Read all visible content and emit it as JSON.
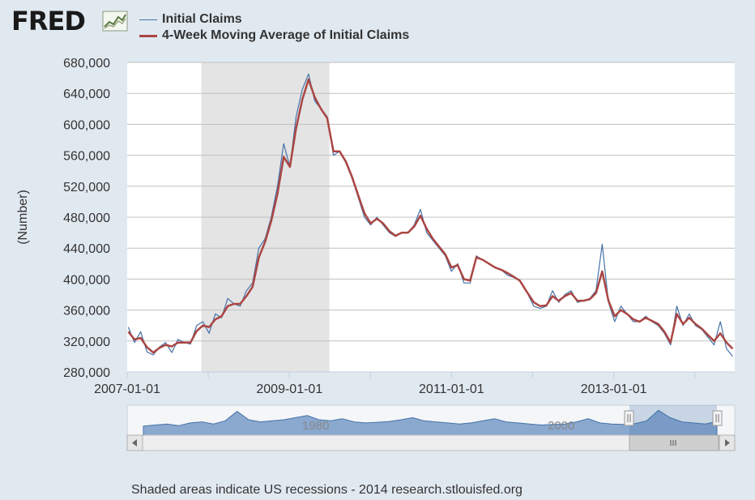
{
  "logo": {
    "text": "FRED"
  },
  "legend": {
    "items": [
      {
        "label": "Initial Claims",
        "color": "#4572a7"
      },
      {
        "label": "4-Week Moving Average of Initial Claims",
        "color": "#aa4643"
      }
    ]
  },
  "footer": {
    "text": "Shaded areas indicate US recessions - 2014 research.stlouisfed.org"
  },
  "navigator": {
    "labels": [
      "1980",
      "2000"
    ]
  },
  "chart_data": {
    "type": "line",
    "ylabel": "(Number)",
    "xlim": [
      "2007-01-01",
      "2014-06-30"
    ],
    "ylim": [
      280000,
      680000
    ],
    "yticks": [
      "280,000",
      "320,000",
      "360,000",
      "400,000",
      "440,000",
      "480,000",
      "520,000",
      "560,000",
      "600,000",
      "640,000",
      "680,000"
    ],
    "xticks": [
      "2007-01-01",
      "2009-01-01",
      "2011-01-01",
      "2013-01-01"
    ],
    "recessions": [
      {
        "start": "2007-12-01",
        "end": "2009-06-30"
      }
    ],
    "grid": true,
    "series": [
      {
        "name": "Initial Claims",
        "color": "#4572a7",
        "points": [
          [
            "2007-01-06",
            338000
          ],
          [
            "2007-02-03",
            318000
          ],
          [
            "2007-03-03",
            332000
          ],
          [
            "2007-03-31",
            306000
          ],
          [
            "2007-04-28",
            302000
          ],
          [
            "2007-05-26",
            312000
          ],
          [
            "2007-06-23",
            318000
          ],
          [
            "2007-07-21",
            305000
          ],
          [
            "2007-08-18",
            322000
          ],
          [
            "2007-09-15",
            318000
          ],
          [
            "2007-10-13",
            316000
          ],
          [
            "2007-11-10",
            340000
          ],
          [
            "2007-12-08",
            345000
          ],
          [
            "2008-01-05",
            330000
          ],
          [
            "2008-02-02",
            355000
          ],
          [
            "2008-03-01",
            350000
          ],
          [
            "2008-03-29",
            375000
          ],
          [
            "2008-04-26",
            368000
          ],
          [
            "2008-05-24",
            365000
          ],
          [
            "2008-06-21",
            385000
          ],
          [
            "2008-07-19",
            395000
          ],
          [
            "2008-08-16",
            440000
          ],
          [
            "2008-09-13",
            452000
          ],
          [
            "2008-10-11",
            480000
          ],
          [
            "2008-11-08",
            520000
          ],
          [
            "2008-12-06",
            575000
          ],
          [
            "2009-01-03",
            545000
          ],
          [
            "2009-01-31",
            610000
          ],
          [
            "2009-02-28",
            645000
          ],
          [
            "2009-03-28",
            665000
          ],
          [
            "2009-04-25",
            630000
          ],
          [
            "2009-05-23",
            620000
          ],
          [
            "2009-06-20",
            610000
          ],
          [
            "2009-07-18",
            560000
          ],
          [
            "2009-08-15",
            565000
          ],
          [
            "2009-09-12",
            550000
          ],
          [
            "2009-10-10",
            530000
          ],
          [
            "2009-11-07",
            505000
          ],
          [
            "2009-12-05",
            480000
          ],
          [
            "2010-01-02",
            470000
          ],
          [
            "2010-01-30",
            480000
          ],
          [
            "2010-02-27",
            470000
          ],
          [
            "2010-03-27",
            460000
          ],
          [
            "2010-04-24",
            455000
          ],
          [
            "2010-05-22",
            460000
          ],
          [
            "2010-06-19",
            460000
          ],
          [
            "2010-07-17",
            470000
          ],
          [
            "2010-08-14",
            490000
          ],
          [
            "2010-09-11",
            460000
          ],
          [
            "2010-10-09",
            450000
          ],
          [
            "2010-11-06",
            440000
          ],
          [
            "2010-12-04",
            430000
          ],
          [
            "2011-01-01",
            410000
          ],
          [
            "2011-01-29",
            420000
          ],
          [
            "2011-02-26",
            395000
          ],
          [
            "2011-03-26",
            395000
          ],
          [
            "2011-04-23",
            430000
          ],
          [
            "2011-05-21",
            425000
          ],
          [
            "2011-06-18",
            420000
          ],
          [
            "2011-07-16",
            415000
          ],
          [
            "2011-08-13",
            412000
          ],
          [
            "2011-09-10",
            405000
          ],
          [
            "2011-10-08",
            402000
          ],
          [
            "2011-11-05",
            398000
          ],
          [
            "2011-12-03",
            385000
          ],
          [
            "2012-01-07",
            365000
          ],
          [
            "2012-02-04",
            362000
          ],
          [
            "2012-03-03",
            365000
          ],
          [
            "2012-03-31",
            385000
          ],
          [
            "2012-04-28",
            370000
          ],
          [
            "2012-05-26",
            380000
          ],
          [
            "2012-06-23",
            385000
          ],
          [
            "2012-07-21",
            370000
          ],
          [
            "2012-08-18",
            372000
          ],
          [
            "2012-09-15",
            375000
          ],
          [
            "2012-10-13",
            385000
          ],
          [
            "2012-11-10",
            445000
          ],
          [
            "2012-12-08",
            370000
          ],
          [
            "2013-01-05",
            345000
          ],
          [
            "2013-02-02",
            365000
          ],
          [
            "2013-03-02",
            355000
          ],
          [
            "2013-03-30",
            345000
          ],
          [
            "2013-04-27",
            345000
          ],
          [
            "2013-05-25",
            352000
          ],
          [
            "2013-06-22",
            345000
          ],
          [
            "2013-07-20",
            340000
          ],
          [
            "2013-08-17",
            330000
          ],
          [
            "2013-09-14",
            315000
          ],
          [
            "2013-10-12",
            365000
          ],
          [
            "2013-11-09",
            340000
          ],
          [
            "2013-12-07",
            355000
          ],
          [
            "2014-01-04",
            340000
          ],
          [
            "2014-02-01",
            335000
          ],
          [
            "2014-03-01",
            325000
          ],
          [
            "2014-03-29",
            315000
          ],
          [
            "2014-04-26",
            345000
          ],
          [
            "2014-05-24",
            310000
          ],
          [
            "2014-06-21",
            300000
          ]
        ]
      },
      {
        "name": "4-Week Moving Average of Initial Claims",
        "color": "#aa4643",
        "points": [
          [
            "2007-01-06",
            332000
          ],
          [
            "2007-02-03",
            322000
          ],
          [
            "2007-03-03",
            324000
          ],
          [
            "2007-03-31",
            312000
          ],
          [
            "2007-04-28",
            305000
          ],
          [
            "2007-05-26",
            311000
          ],
          [
            "2007-06-23",
            315000
          ],
          [
            "2007-07-21",
            313000
          ],
          [
            "2007-08-18",
            318000
          ],
          [
            "2007-09-15",
            318000
          ],
          [
            "2007-10-13",
            318000
          ],
          [
            "2007-11-10",
            333000
          ],
          [
            "2007-12-08",
            340000
          ],
          [
            "2008-01-05",
            338000
          ],
          [
            "2008-02-02",
            348000
          ],
          [
            "2008-03-01",
            352000
          ],
          [
            "2008-03-29",
            365000
          ],
          [
            "2008-04-26",
            368000
          ],
          [
            "2008-05-24",
            368000
          ],
          [
            "2008-06-21",
            378000
          ],
          [
            "2008-07-19",
            390000
          ],
          [
            "2008-08-16",
            428000
          ],
          [
            "2008-09-13",
            448000
          ],
          [
            "2008-10-11",
            475000
          ],
          [
            "2008-11-08",
            510000
          ],
          [
            "2008-12-06",
            558000
          ],
          [
            "2009-01-03",
            545000
          ],
          [
            "2009-01-31",
            595000
          ],
          [
            "2009-02-28",
            632000
          ],
          [
            "2009-03-28",
            658000
          ],
          [
            "2009-04-25",
            635000
          ],
          [
            "2009-05-23",
            620000
          ],
          [
            "2009-06-20",
            608000
          ],
          [
            "2009-07-18",
            565000
          ],
          [
            "2009-08-15",
            565000
          ],
          [
            "2009-09-12",
            552000
          ],
          [
            "2009-10-10",
            532000
          ],
          [
            "2009-11-07",
            508000
          ],
          [
            "2009-12-05",
            485000
          ],
          [
            "2010-01-02",
            472000
          ],
          [
            "2010-01-30",
            478000
          ],
          [
            "2010-02-27",
            472000
          ],
          [
            "2010-03-27",
            462000
          ],
          [
            "2010-04-24",
            456000
          ],
          [
            "2010-05-22",
            460000
          ],
          [
            "2010-06-19",
            460000
          ],
          [
            "2010-07-17",
            468000
          ],
          [
            "2010-08-14",
            482000
          ],
          [
            "2010-09-11",
            465000
          ],
          [
            "2010-10-09",
            452000
          ],
          [
            "2010-11-06",
            442000
          ],
          [
            "2010-12-04",
            432000
          ],
          [
            "2011-01-01",
            415000
          ],
          [
            "2011-01-29",
            418000
          ],
          [
            "2011-02-26",
            400000
          ],
          [
            "2011-03-26",
            398000
          ],
          [
            "2011-04-23",
            428000
          ],
          [
            "2011-05-21",
            425000
          ],
          [
            "2011-06-18",
            420000
          ],
          [
            "2011-07-16",
            415000
          ],
          [
            "2011-08-13",
            412000
          ],
          [
            "2011-09-10",
            408000
          ],
          [
            "2011-10-08",
            403000
          ],
          [
            "2011-11-05",
            398000
          ],
          [
            "2011-12-03",
            385000
          ],
          [
            "2012-01-07",
            370000
          ],
          [
            "2012-02-04",
            365000
          ],
          [
            "2012-03-03",
            366000
          ],
          [
            "2012-03-31",
            378000
          ],
          [
            "2012-04-28",
            372000
          ],
          [
            "2012-05-26",
            378000
          ],
          [
            "2012-06-23",
            382000
          ],
          [
            "2012-07-21",
            372000
          ],
          [
            "2012-08-18",
            372000
          ],
          [
            "2012-09-15",
            374000
          ],
          [
            "2012-10-13",
            382000
          ],
          [
            "2012-11-10",
            410000
          ],
          [
            "2012-12-08",
            372000
          ],
          [
            "2013-01-05",
            352000
          ],
          [
            "2013-02-02",
            360000
          ],
          [
            "2013-03-02",
            355000
          ],
          [
            "2013-03-30",
            348000
          ],
          [
            "2013-04-27",
            345000
          ],
          [
            "2013-05-25",
            350000
          ],
          [
            "2013-06-22",
            346000
          ],
          [
            "2013-07-20",
            342000
          ],
          [
            "2013-08-17",
            332000
          ],
          [
            "2013-09-14",
            318000
          ],
          [
            "2013-10-12",
            355000
          ],
          [
            "2013-11-09",
            342000
          ],
          [
            "2013-12-07",
            350000
          ],
          [
            "2014-01-04",
            342000
          ],
          [
            "2014-02-01",
            336000
          ],
          [
            "2014-03-01",
            328000
          ],
          [
            "2014-03-29",
            320000
          ],
          [
            "2014-04-26",
            330000
          ],
          [
            "2014-05-24",
            318000
          ],
          [
            "2014-06-21",
            310000
          ]
        ]
      }
    ]
  }
}
